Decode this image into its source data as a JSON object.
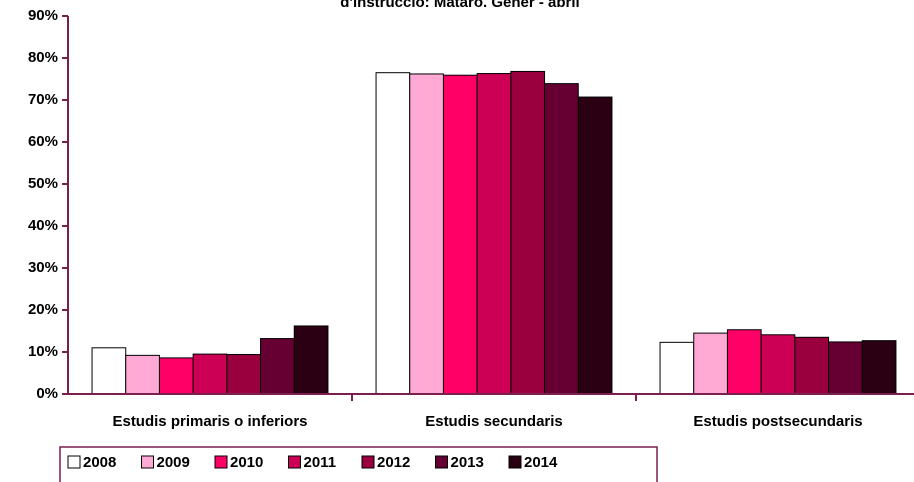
{
  "chart_data": {
    "type": "bar",
    "title": "d'instrucció: Mataró. Gener - abril",
    "categories": [
      "Estudis primaris o inferiors",
      "Estudis secundaris",
      "Estudis postsecundaris"
    ],
    "series": [
      {
        "name": "2008",
        "color": "#ffffff",
        "values": [
          11.0,
          76.5,
          12.3
        ]
      },
      {
        "name": "2009",
        "color": "#ffaad4",
        "values": [
          9.2,
          76.2,
          14.5
        ]
      },
      {
        "name": "2010",
        "color": "#ff0066",
        "values": [
          8.6,
          75.9,
          15.3
        ]
      },
      {
        "name": "2011",
        "color": "#cc0055",
        "values": [
          9.5,
          76.3,
          14.1
        ]
      },
      {
        "name": "2012",
        "color": "#99003d",
        "values": [
          9.4,
          76.8,
          13.5
        ]
      },
      {
        "name": "2013",
        "color": "#660033",
        "values": [
          13.2,
          73.9,
          12.4
        ]
      },
      {
        "name": "2014",
        "color": "#2a0012",
        "values": [
          16.2,
          70.7,
          12.7
        ]
      }
    ],
    "ylim": [
      0,
      90
    ],
    "yticks": [
      {
        "value": 0,
        "label": "0%"
      },
      {
        "value": 10,
        "label": "10%"
      },
      {
        "value": 20,
        "label": "20%"
      },
      {
        "value": 30,
        "label": "30%"
      },
      {
        "value": 40,
        "label": "40%"
      },
      {
        "value": 50,
        "label": "50%"
      },
      {
        "value": 60,
        "label": "60%"
      },
      {
        "value": 70,
        "label": "70%"
      },
      {
        "value": 80,
        "label": "80%"
      },
      {
        "value": 90,
        "label": "90%"
      }
    ]
  }
}
